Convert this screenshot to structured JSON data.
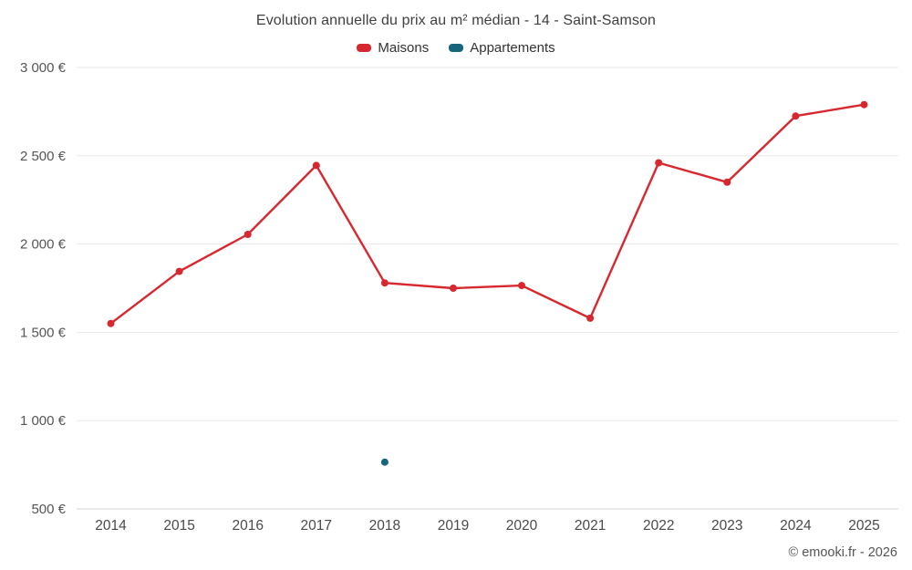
{
  "chart_data": {
    "type": "line",
    "title": "Evolution annuelle du prix au m² médian - 14 - Saint-Samson",
    "categories": [
      "2014",
      "2015",
      "2016",
      "2017",
      "2018",
      "2019",
      "2020",
      "2021",
      "2022",
      "2023",
      "2024",
      "2025"
    ],
    "series": [
      {
        "name": "Maisons",
        "color": "#d7282f",
        "values": [
          1550,
          1845,
          2055,
          2445,
          1780,
          1750,
          1765,
          1580,
          2460,
          2350,
          2725,
          2790
        ]
      },
      {
        "name": "Appartements",
        "color": "#17657d",
        "values": [
          null,
          null,
          null,
          null,
          765,
          null,
          null,
          null,
          null,
          null,
          null,
          null
        ]
      }
    ],
    "ylim": [
      500,
      3000
    ],
    "ytick_step": 500,
    "ytick_labels": [
      "500 €",
      "1 000 €",
      "1 500 €",
      "2 000 €",
      "2 500 €",
      "3 000 €"
    ],
    "grid": true,
    "legend_position": "top",
    "grid_color": "#e8e8e8",
    "axis_line_color": "#d2d6da"
  },
  "footer": {
    "credit": "© emooki.fr - 2026"
  }
}
